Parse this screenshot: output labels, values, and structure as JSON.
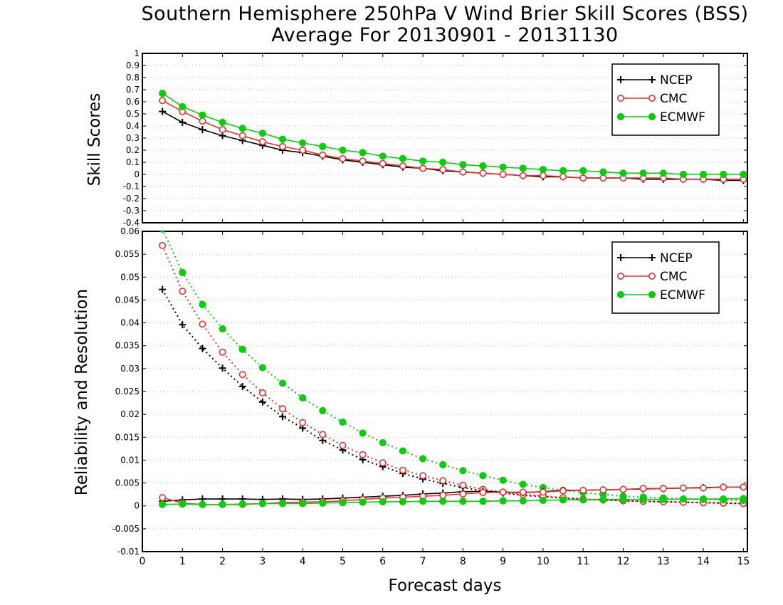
{
  "title_line1": "Southern Hemisphere 250hPa V Wind Brier Skill Scores (BSS)",
  "title_line2": "Average For 20130901 - 20131130",
  "xlabel": "Forecast days",
  "colors": {
    "NCEP": "#000000",
    "CMC": "#e8322f",
    "ECMWF": "#13c813"
  },
  "chart_data": [
    {
      "type": "line",
      "ylabel": "Skill Scores",
      "xlim": [
        0,
        15.1
      ],
      "ylim": [
        -0.4,
        1
      ],
      "xticks": [
        0,
        1,
        2,
        3,
        4,
        5,
        6,
        7,
        8,
        9,
        10,
        11,
        12,
        13,
        14,
        15
      ],
      "yticks": [
        -0.4,
        -0.3,
        -0.2,
        -0.1,
        0,
        0.1,
        0.2,
        0.3,
        0.4,
        0.5,
        0.6,
        0.7,
        0.8,
        0.9,
        1
      ],
      "ytick_labels": [
        "-0.4",
        "-0.3",
        "-0.2",
        "-0.1",
        "0",
        "0.1",
        "0.2",
        "0.3",
        "0.4",
        "0.5",
        "0.6",
        "0.7",
        "0.8",
        "0.9",
        "1"
      ],
      "grid": "horizontal dotted",
      "legend": "top-right",
      "x": [
        0.5,
        1,
        1.5,
        2,
        2.5,
        3,
        3.5,
        4,
        4.5,
        5,
        5.5,
        6,
        6.5,
        7,
        7.5,
        8,
        8.5,
        9,
        9.5,
        10,
        10.5,
        11,
        11.5,
        12,
        12.5,
        13,
        13.5,
        14,
        14.5,
        15
      ],
      "series": [
        {
          "name": "NCEP",
          "marker": "plus",
          "line": "solid",
          "values": [
            0.52,
            0.43,
            0.37,
            0.32,
            0.28,
            0.24,
            0.2,
            0.18,
            0.15,
            0.12,
            0.1,
            0.08,
            0.06,
            0.05,
            0.03,
            0.02,
            0.01,
            0.0,
            -0.01,
            -0.02,
            -0.02,
            -0.03,
            -0.03,
            -0.03,
            -0.04,
            -0.04,
            -0.04,
            -0.04,
            -0.05,
            -0.05
          ]
        },
        {
          "name": "CMC",
          "marker": "open-circle",
          "line": "solid",
          "values": [
            0.61,
            0.52,
            0.44,
            0.37,
            0.32,
            0.27,
            0.23,
            0.2,
            0.16,
            0.13,
            0.11,
            0.09,
            0.07,
            0.05,
            0.04,
            0.02,
            0.01,
            0.0,
            -0.01,
            -0.01,
            -0.02,
            -0.03,
            -0.03,
            -0.03,
            -0.03,
            -0.03,
            -0.04,
            -0.04,
            -0.04,
            -0.04
          ]
        },
        {
          "name": "ECMWF",
          "marker": "filled-circle",
          "line": "solid",
          "values": [
            0.67,
            0.56,
            0.49,
            0.43,
            0.38,
            0.34,
            0.29,
            0.26,
            0.23,
            0.2,
            0.18,
            0.15,
            0.13,
            0.11,
            0.1,
            0.08,
            0.07,
            0.06,
            0.05,
            0.04,
            0.03,
            0.03,
            0.02,
            0.01,
            0.01,
            0.01,
            0.0,
            0.0,
            0.0,
            0.0
          ]
        }
      ]
    },
    {
      "type": "line",
      "ylabel": "Reliability and Resolution",
      "xlim": [
        0,
        15.1
      ],
      "ylim": [
        -0.01,
        0.06
      ],
      "xticks": [
        0,
        1,
        2,
        3,
        4,
        5,
        6,
        7,
        8,
        9,
        10,
        11,
        12,
        13,
        14,
        15
      ],
      "yticks": [
        -0.01,
        -0.005,
        0,
        0.005,
        0.01,
        0.015,
        0.02,
        0.025,
        0.03,
        0.035,
        0.04,
        0.045,
        0.05,
        0.055,
        0.06
      ],
      "ytick_labels": [
        "-0.01",
        "-0.005",
        "0",
        "0.005",
        "0.01",
        "0.015",
        "0.02",
        "0.025",
        "0.03",
        "0.035",
        "0.04",
        "0.045",
        "0.05",
        "0.055",
        "0.06"
      ],
      "grid": "horizontal dotted",
      "legend": "top-right",
      "x": [
        0.5,
        1,
        1.5,
        2,
        2.5,
        3,
        3.5,
        4,
        4.5,
        5,
        5.5,
        6,
        6.5,
        7,
        7.5,
        8,
        8.5,
        9,
        9.5,
        10,
        10.5,
        11,
        11.5,
        12,
        12.5,
        13,
        13.5,
        14,
        14.5,
        15
      ],
      "series": [
        {
          "name": "NCEP",
          "metric": "resolution",
          "marker": "plus",
          "line": "dotted",
          "values": [
            0.0473,
            0.0396,
            0.0344,
            0.0301,
            0.0261,
            0.0227,
            0.0195,
            0.017,
            0.0143,
            0.0122,
            0.0101,
            0.0086,
            0.0071,
            0.0059,
            0.0049,
            0.004,
            0.0033,
            0.0028,
            0.0023,
            0.002,
            0.0017,
            0.0014,
            0.0013,
            0.0011,
            0.001,
            0.0009,
            0.0008,
            0.0007,
            0.0006,
            0.0005
          ]
        },
        {
          "name": "CMC",
          "metric": "resolution",
          "marker": "open-circle",
          "line": "dotted",
          "values": [
            0.0569,
            0.0469,
            0.0397,
            0.0336,
            0.0287,
            0.0247,
            0.0212,
            0.0182,
            0.0156,
            0.0132,
            0.0112,
            0.0094,
            0.0078,
            0.0066,
            0.0055,
            0.0045,
            0.0036,
            0.003,
            0.0025,
            0.0022,
            0.0018,
            0.0015,
            0.0013,
            0.0011,
            0.001,
            0.0009,
            0.0008,
            0.0007,
            0.0006,
            0.0005
          ]
        },
        {
          "name": "ECMWF",
          "metric": "resolution",
          "marker": "filled-circle",
          "line": "dotted",
          "values": [
            0.0605,
            0.051,
            0.044,
            0.0387,
            0.0342,
            0.0302,
            0.0268,
            0.0236,
            0.0208,
            0.0183,
            0.0159,
            0.0138,
            0.012,
            0.0103,
            0.009,
            0.0077,
            0.0066,
            0.0056,
            0.0047,
            0.004,
            0.0034,
            0.0029,
            0.0025,
            0.0021,
            0.0019,
            0.0017,
            0.0015,
            0.0014,
            0.0013,
            0.0012
          ]
        },
        {
          "name": "NCEP",
          "metric": "reliability",
          "marker": "plus",
          "line": "solid",
          "values": [
            0.001,
            0.0013,
            0.0015,
            0.0015,
            0.0015,
            0.0014,
            0.0015,
            0.0014,
            0.0015,
            0.0017,
            0.0019,
            0.0021,
            0.0023,
            0.0026,
            0.0028,
            0.0031,
            0.0032,
            0.003,
            0.0029,
            0.0031,
            0.0034,
            0.0034,
            0.0035,
            0.0036,
            0.0037,
            0.0038,
            0.0039,
            0.004,
            0.0041,
            0.0041
          ]
        },
        {
          "name": "CMC",
          "metric": "reliability",
          "marker": "open-circle",
          "line": "solid",
          "values": [
            0.0018,
            0.0006,
            0.0003,
            0.0003,
            0.0003,
            0.0005,
            0.0007,
            0.0008,
            0.0009,
            0.0011,
            0.0014,
            0.0017,
            0.0019,
            0.0021,
            0.0023,
            0.0026,
            0.0029,
            0.003,
            0.003,
            0.003,
            0.0033,
            0.0034,
            0.0035,
            0.0036,
            0.0038,
            0.0038,
            0.0039,
            0.0039,
            0.0041,
            0.0041
          ]
        },
        {
          "name": "ECMWF",
          "metric": "reliability",
          "marker": "filled-circle",
          "line": "solid",
          "values": [
            0.0003,
            0.0004,
            0.0003,
            0.0003,
            0.0004,
            0.0005,
            0.0005,
            0.0005,
            0.0006,
            0.0007,
            0.0008,
            0.0009,
            0.0009,
            0.001,
            0.001,
            0.001,
            0.001,
            0.0011,
            0.0011,
            0.0012,
            0.0013,
            0.0013,
            0.0014,
            0.0014,
            0.0014,
            0.0014,
            0.0015,
            0.0015,
            0.0015,
            0.0016
          ]
        }
      ]
    }
  ]
}
